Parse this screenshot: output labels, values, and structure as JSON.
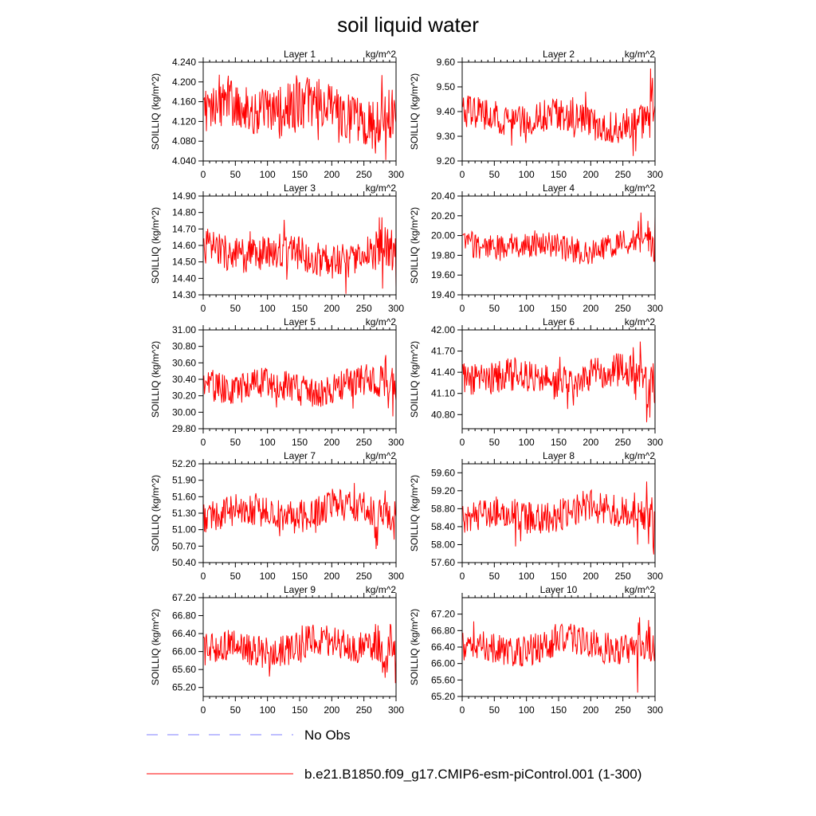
{
  "figure": {
    "title": "soil liquid water",
    "legend": [
      {
        "label": "No Obs",
        "color": "#9999ff",
        "style": "dashed"
      },
      {
        "label": "b.e21.B1850.f09_g17.CMIP6-esm-piControl.001 (1-300)",
        "color": "#ff0000",
        "style": "solid"
      }
    ]
  },
  "chart_data": [
    {
      "type": "line",
      "title": "Layer 1",
      "units": "kg/m^2",
      "ylabel": "SOILLIQ  (kg/m^2)",
      "xlim": [
        0,
        300
      ],
      "ylim": [
        4.04,
        4.24
      ],
      "xticks": [
        0,
        50,
        100,
        150,
        200,
        250,
        300
      ],
      "yticks": [
        "4.040",
        "4.080",
        "4.120",
        "4.160",
        "4.200",
        "4.240"
      ],
      "mean": 4.14,
      "amp": 0.045,
      "phase": 0.3,
      "spike": 0.09,
      "series": [
        {
          "name": "b.e21.B1850.f09_g17.CMIP6-esm-piControl.001 (1-300)",
          "color": "#ff0000"
        }
      ]
    },
    {
      "type": "line",
      "title": "Layer 2",
      "units": "kg/m^2",
      "ylabel": "SOILLIQ  (kg/m^2)",
      "xlim": [
        0,
        300
      ],
      "ylim": [
        9.2,
        9.6
      ],
      "xticks": [
        0,
        50,
        100,
        150,
        200,
        250,
        300
      ],
      "yticks": [
        "9.20",
        "9.30",
        "9.40",
        "9.50",
        "9.60"
      ],
      "mean": 9.37,
      "amp": 0.055,
      "phase": 1.1,
      "spike": 0.17,
      "series": [
        {
          "name": "b.e21.B1850.f09_g17.CMIP6-esm-piControl.001 (1-300)",
          "color": "#ff0000"
        }
      ]
    },
    {
      "type": "line",
      "title": "Layer 3",
      "units": "kg/m^2",
      "ylabel": "SOILLIQ  (kg/m^2)",
      "xlim": [
        0,
        300
      ],
      "ylim": [
        14.3,
        14.9
      ],
      "xticks": [
        0,
        50,
        100,
        150,
        200,
        250,
        300
      ],
      "yticks": [
        "14.30",
        "14.40",
        "14.50",
        "14.60",
        "14.70",
        "14.80",
        "14.90"
      ],
      "mean": 14.55,
      "amp": 0.09,
      "phase": 2.0,
      "spike": 0.25,
      "series": [
        {
          "name": "b.e21.B1850.f09_g17.CMIP6-esm-piControl.001 (1-300)",
          "color": "#ff0000"
        }
      ]
    },
    {
      "type": "line",
      "title": "Layer 4",
      "units": "kg/m^2",
      "ylabel": "SOILLIQ  (kg/m^2)",
      "xlim": [
        0,
        300
      ],
      "ylim": [
        19.4,
        20.4
      ],
      "xticks": [
        0,
        50,
        100,
        150,
        200,
        250,
        300
      ],
      "yticks": [
        "19.40",
        "19.60",
        "19.80",
        "20.00",
        "20.20",
        "20.40"
      ],
      "mean": 19.9,
      "amp": 0.11,
      "phase": 2.7,
      "spike": 0.3,
      "series": [
        {
          "name": "b.e21.B1850.f09_g17.CMIP6-esm-piControl.001 (1-300)",
          "color": "#ff0000"
        }
      ]
    },
    {
      "type": "line",
      "title": "Layer 5",
      "units": "kg/m^2",
      "ylabel": "SOILLIQ  (kg/m^2)",
      "xlim": [
        0,
        300
      ],
      "ylim": [
        29.8,
        31.0
      ],
      "xticks": [
        0,
        50,
        100,
        150,
        200,
        250,
        300
      ],
      "yticks": [
        "29.80",
        "30.00",
        "30.20",
        "30.40",
        "30.60",
        "30.80",
        "31.00"
      ],
      "mean": 30.33,
      "amp": 0.16,
      "phase": 3.4,
      "spike": 0.45,
      "series": [
        {
          "name": "b.e21.B1850.f09_g17.CMIP6-esm-piControl.001 (1-300)",
          "color": "#ff0000"
        }
      ]
    },
    {
      "type": "line",
      "title": "Layer 6",
      "units": "kg/m^2",
      "ylabel": "SOILLIQ  (kg/m^2)",
      "xlim": [
        0,
        300
      ],
      "ylim": [
        40.6,
        42.0
      ],
      "xticks": [
        0,
        50,
        100,
        150,
        200,
        250,
        300
      ],
      "yticks": [
        "40.80",
        "41.10",
        "41.40",
        "41.70",
        "42.00"
      ],
      "mean": 41.35,
      "amp": 0.2,
      "phase": 4.1,
      "spike": 0.55,
      "series": [
        {
          "name": "b.e21.B1850.f09_g17.CMIP6-esm-piControl.001 (1-300)",
          "color": "#ff0000"
        }
      ]
    },
    {
      "type": "line",
      "title": "Layer 7",
      "units": "kg/m^2",
      "ylabel": "SOILLIQ  (kg/m^2)",
      "xlim": [
        0,
        300
      ],
      "ylim": [
        50.4,
        52.2
      ],
      "xticks": [
        0,
        50,
        100,
        150,
        200,
        250,
        300
      ],
      "yticks": [
        "50.40",
        "50.70",
        "51.00",
        "51.30",
        "51.60",
        "51.90",
        "52.20"
      ],
      "mean": 51.35,
      "amp": 0.25,
      "phase": 4.8,
      "spike": 0.7,
      "series": [
        {
          "name": "b.e21.B1850.f09_g17.CMIP6-esm-piControl.001 (1-300)",
          "color": "#ff0000"
        }
      ]
    },
    {
      "type": "line",
      "title": "Layer 8",
      "units": "kg/m^2",
      "ylabel": "SOILLIQ  (kg/m^2)",
      "xlim": [
        0,
        300
      ],
      "ylim": [
        57.6,
        59.8
      ],
      "xticks": [
        0,
        50,
        100,
        150,
        200,
        250,
        300
      ],
      "yticks": [
        "57.60",
        "58.00",
        "58.40",
        "58.80",
        "59.20",
        "59.60"
      ],
      "mean": 58.7,
      "amp": 0.3,
      "phase": 5.5,
      "spike": 0.85,
      "series": [
        {
          "name": "b.e21.B1850.f09_g17.CMIP6-esm-piControl.001 (1-300)",
          "color": "#ff0000"
        }
      ]
    },
    {
      "type": "line",
      "title": "Layer 9",
      "units": "kg/m^2",
      "ylabel": "SOILLIQ  (kg/m^2)",
      "xlim": [
        0,
        300
      ],
      "ylim": [
        65.0,
        67.2
      ],
      "xticks": [
        0,
        50,
        100,
        150,
        200,
        250,
        300
      ],
      "yticks": [
        "65.20",
        "65.60",
        "66.00",
        "66.40",
        "66.80",
        "67.20"
      ],
      "mean": 66.1,
      "amp": 0.3,
      "phase": 6.2,
      "spike": 0.85,
      "series": [
        {
          "name": "b.e21.B1850.f09_g17.CMIP6-esm-piControl.001 (1-300)",
          "color": "#ff0000"
        }
      ]
    },
    {
      "type": "line",
      "title": "Layer 10",
      "units": "kg/m^2",
      "ylabel": "SOILLIQ  (kg/m^2)",
      "xlim": [
        0,
        300
      ],
      "ylim": [
        65.2,
        67.6
      ],
      "xticks": [
        0,
        50,
        100,
        150,
        200,
        250,
        300
      ],
      "yticks": [
        "65.20",
        "65.60",
        "66.00",
        "66.40",
        "66.80",
        "67.20"
      ],
      "mean": 66.4,
      "amp": 0.32,
      "phase": 6.9,
      "spike": 0.9,
      "series": [
        {
          "name": "b.e21.B1850.f09_g17.CMIP6-esm-piControl.001 (1-300)",
          "color": "#ff0000"
        }
      ]
    }
  ]
}
